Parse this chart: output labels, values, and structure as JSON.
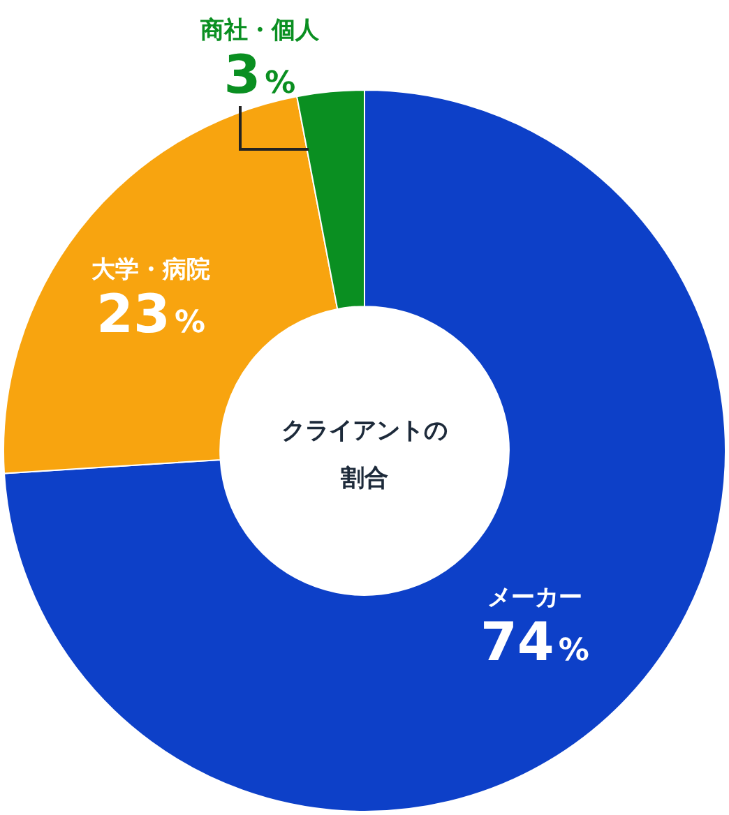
{
  "chart_data": {
    "type": "donut",
    "title": "クライアントの割合",
    "categories": [
      "メーカー",
      "大学・病院",
      "商社・個人"
    ],
    "values": [
      74,
      23,
      3
    ],
    "colors": [
      "#0d40c8",
      "#f8a40f",
      "#0a8f21"
    ],
    "value_labels": [
      "74%",
      "23%",
      "3%"
    ],
    "legend": false
  }
}
